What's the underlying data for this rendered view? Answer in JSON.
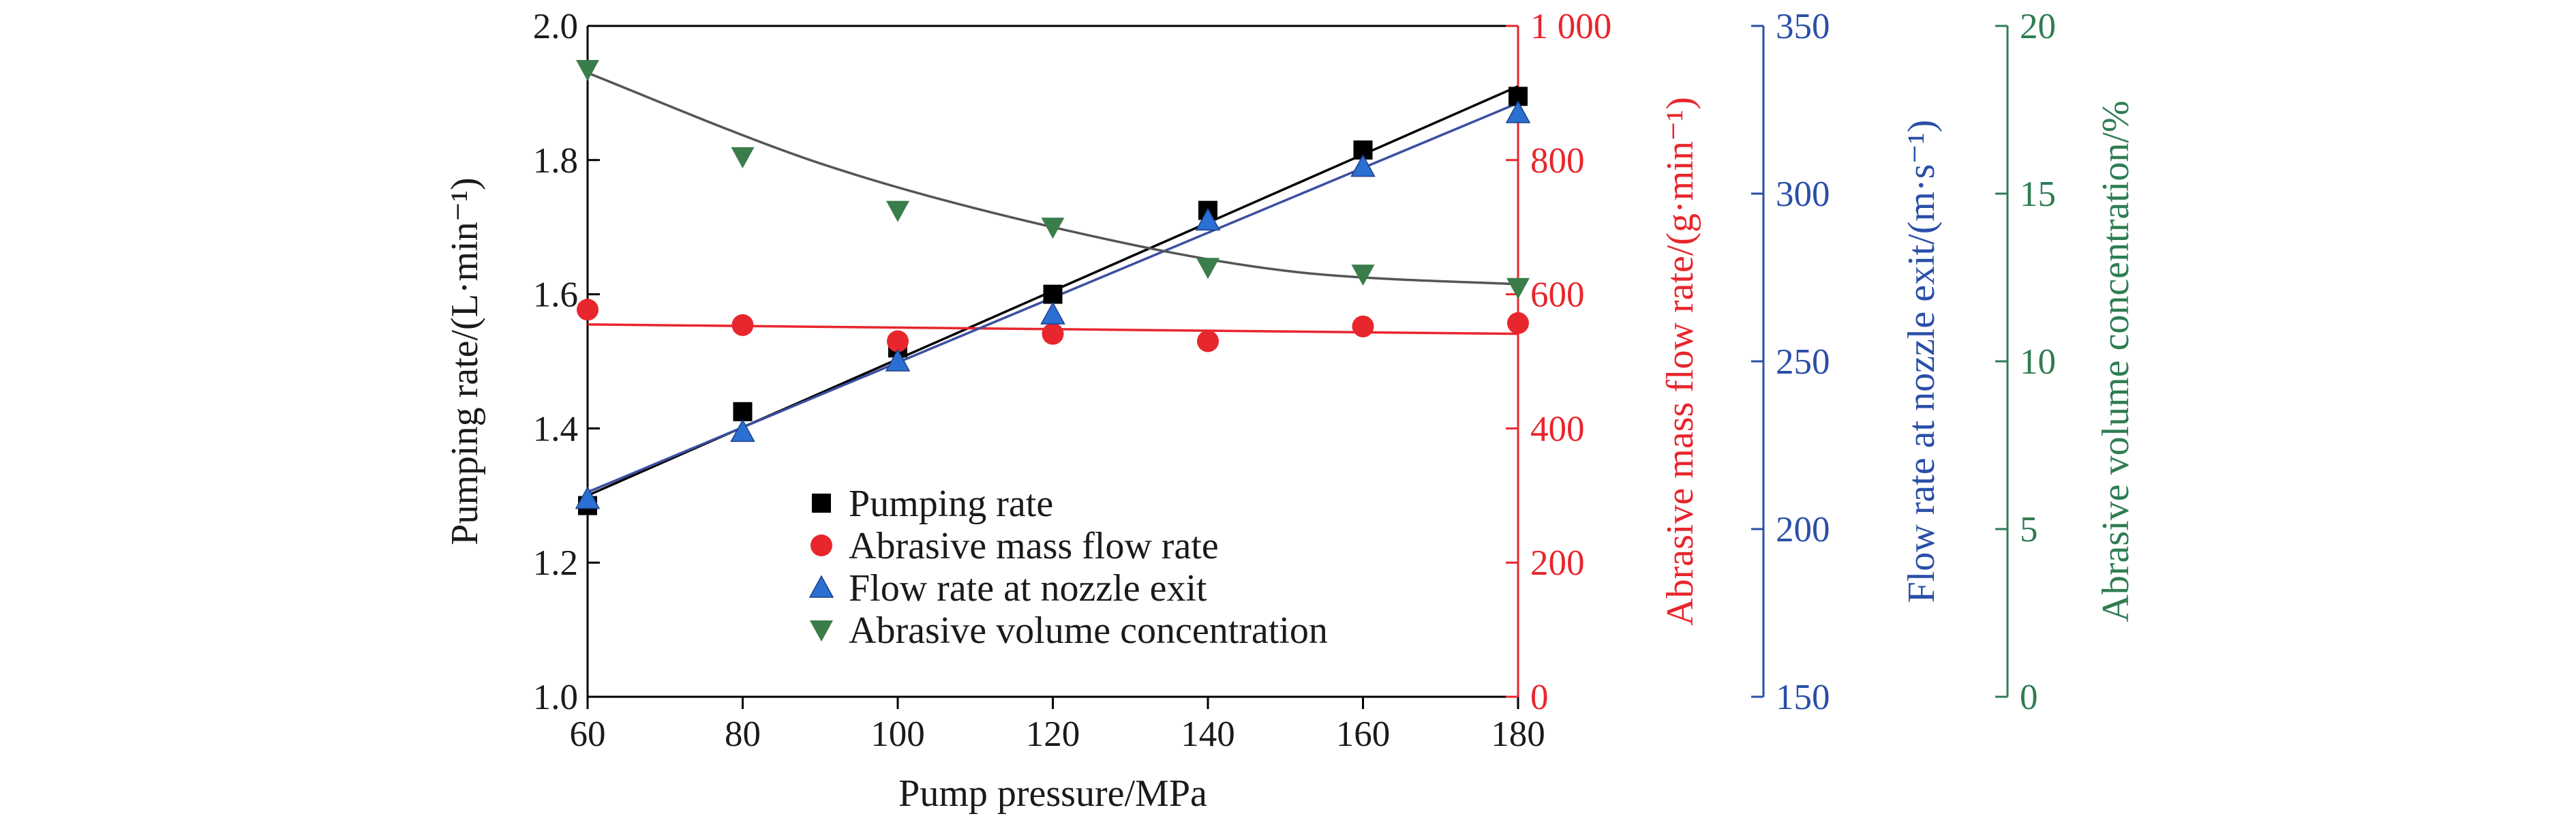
{
  "chart_data": {
    "type": "scatter",
    "xlabel": "Pump pressure/MPa",
    "xlim": [
      60,
      180
    ],
    "x_ticks": [
      "60",
      "80",
      "100",
      "120",
      "140",
      "160",
      "180"
    ],
    "axes": [
      {
        "id": "left",
        "label": "Pumping rate/(L·min⁻¹)",
        "ylim": [
          1.0,
          2.0
        ],
        "ticks": [
          "1.0",
          "1.2",
          "1.4",
          "1.6",
          "1.8",
          "2.0"
        ],
        "color": "#000000"
      },
      {
        "id": "right1",
        "label": "Abrasive mass flow rate/(g·min⁻¹)",
        "ylim": [
          0,
          1000
        ],
        "ticks": [
          "0",
          "200",
          "400",
          "600",
          "800",
          "1 000"
        ],
        "color": "#e8262d"
      },
      {
        "id": "right2",
        "label": "Flow rate at nozzle exit/(m·s⁻¹)",
        "ylim": [
          150,
          350
        ],
        "ticks": [
          "150",
          "200",
          "250",
          "300",
          "350"
        ],
        "color": "#2a4fa8"
      },
      {
        "id": "right3",
        "label": "Abrasive volume concentration/%",
        "ylim": [
          0,
          20
        ],
        "ticks": [
          "0",
          "5",
          "10",
          "15",
          "20"
        ],
        "color": "#2e7d52"
      }
    ],
    "x": [
      60,
      80,
      100,
      120,
      140,
      160,
      180
    ],
    "series": [
      {
        "name": "Pumping rate",
        "axis": "left",
        "marker": "square",
        "color": "#000000",
        "values": [
          1.285,
          1.425,
          1.52,
          1.6,
          1.725,
          1.815,
          1.895
        ],
        "fit": [
          [
            60,
            1.3
          ],
          [
            180,
            1.91
          ]
        ]
      },
      {
        "name": "Abrasive mass flow rate",
        "axis": "right1",
        "marker": "circle",
        "color": "#e8262d",
        "values": [
          577,
          554,
          530,
          541,
          530,
          552,
          557
        ],
        "fit": [
          [
            60,
            555
          ],
          [
            180,
            541
          ]
        ]
      },
      {
        "name": "Flow rate at nozzle exit",
        "axis": "right2",
        "marker": "triangle-up",
        "color": "#2a6fd1",
        "values": [
          209,
          229,
          250,
          264,
          292,
          308,
          324
        ],
        "fit": [
          [
            60,
            211
          ],
          [
            180,
            327
          ]
        ]
      },
      {
        "name": "Abrasive volume concentration",
        "axis": "right3",
        "marker": "triangle-down",
        "color": "#3a7d4a",
        "values": [
          18.7,
          16.1,
          14.5,
          14.0,
          12.8,
          12.6,
          12.2
        ],
        "fit": [
          [
            60,
            18.6
          ],
          [
            90,
            15.9
          ],
          [
            120,
            14.0
          ],
          [
            150,
            12.7
          ],
          [
            180,
            12.3
          ]
        ]
      }
    ],
    "legend_position": "lower-left"
  }
}
